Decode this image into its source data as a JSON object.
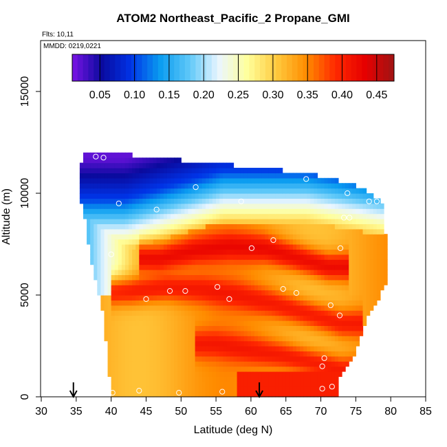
{
  "chart_data": {
    "type": "heatmap",
    "title": "ATOM2 Northeast_Pacific_2 Propane_GMI",
    "annotations": {
      "flights": "Flts: 10,11",
      "dates": "MMDD: 0219,0221"
    },
    "xlabel": "Latitude (deg N)",
    "ylabel": "Altitude (m)",
    "xlim": [
      30,
      85
    ],
    "ylim": [
      0,
      17500
    ],
    "x_ticks": [
      30,
      35,
      40,
      45,
      50,
      55,
      60,
      65,
      70,
      75,
      80,
      85
    ],
    "y_ticks": [
      0,
      5000,
      10000,
      15000
    ],
    "colorbar": {
      "range": [
        0.01,
        0.475
      ],
      "ticks": [
        0.05,
        0.1,
        0.15,
        0.2,
        0.25,
        0.3,
        0.35,
        0.4,
        0.45
      ],
      "tick_labels": [
        "0.05",
        "0.10",
        "0.15",
        "0.20",
        "0.25",
        "0.30",
        "0.35",
        "0.40",
        "0.45"
      ],
      "colors": [
        "#7a14e6",
        "#0a0a9e",
        "#0033e6",
        "#0a9cf0",
        "#5ec8f8",
        "#eaf6ff",
        "#ffff9a",
        "#ffc83c",
        "#ff8c00",
        "#ff2800",
        "#e60000",
        "#a01414"
      ]
    },
    "field_note": "Modelled propane mixing ratio; high (0.35-0.47) below ~8 km south to north, low (<0.10) above ~10 km.",
    "field_extent": {
      "lat_min": 35.5,
      "lat_max": 80.5,
      "alt_min": 0,
      "alt_max": 12000
    },
    "ridges": [
      {
        "lat": [
          47,
          52,
          57,
          62,
          67,
          71
        ],
        "alt": [
          6800,
          7200,
          7400,
          7300,
          6800,
          6400
        ],
        "value": 0.44
      },
      {
        "lat": [
          43,
          48,
          53,
          58,
          63,
          68,
          73
        ],
        "alt": [
          5200,
          5400,
          5300,
          5000,
          4600,
          4100,
          3600
        ],
        "value": 0.42
      },
      {
        "lat": [
          55,
          60,
          65,
          70,
          73
        ],
        "alt": [
          2600,
          2300,
          2000,
          1600,
          1300
        ],
        "value": 0.42
      }
    ],
    "observations": [
      {
        "lat": 35.4,
        "alt": 11700
      },
      {
        "lat": 37.8,
        "alt": 11800
      },
      {
        "lat": 38.9,
        "alt": 11750
      },
      {
        "lat": 35.0,
        "alt": 10900
      },
      {
        "lat": 52.1,
        "alt": 10300
      },
      {
        "lat": 67.9,
        "alt": 10700
      },
      {
        "lat": 73.8,
        "alt": 10000
      },
      {
        "lat": 41.1,
        "alt": 9500
      },
      {
        "lat": 58.6,
        "alt": 9600
      },
      {
        "lat": 76.9,
        "alt": 9600
      },
      {
        "lat": 78.0,
        "alt": 9600
      },
      {
        "lat": 46.5,
        "alt": 9200
      },
      {
        "lat": 73.3,
        "alt": 8800
      },
      {
        "lat": 74.1,
        "alt": 8800
      },
      {
        "lat": 63.2,
        "alt": 7700
      },
      {
        "lat": 60.1,
        "alt": 7300
      },
      {
        "lat": 72.8,
        "alt": 7300
      },
      {
        "lat": 40.0,
        "alt": 7000
      },
      {
        "lat": 55.2,
        "alt": 5400
      },
      {
        "lat": 50.6,
        "alt": 5200
      },
      {
        "lat": 48.4,
        "alt": 5200
      },
      {
        "lat": 64.6,
        "alt": 5300
      },
      {
        "lat": 66.5,
        "alt": 5100
      },
      {
        "lat": 45.0,
        "alt": 4800
      },
      {
        "lat": 56.9,
        "alt": 4800
      },
      {
        "lat": 71.4,
        "alt": 4500
      },
      {
        "lat": 72.7,
        "alt": 4000
      },
      {
        "lat": 70.5,
        "alt": 1900
      },
      {
        "lat": 70.2,
        "alt": 1500
      },
      {
        "lat": 70.2,
        "alt": 400
      },
      {
        "lat": 71.6,
        "alt": 500
      },
      {
        "lat": 40.2,
        "alt": 200
      },
      {
        "lat": 44.0,
        "alt": 300
      },
      {
        "lat": 49.7,
        "alt": 200
      },
      {
        "lat": 55.9,
        "alt": 250
      }
    ],
    "arrows": [
      34.6,
      61.2
    ]
  }
}
